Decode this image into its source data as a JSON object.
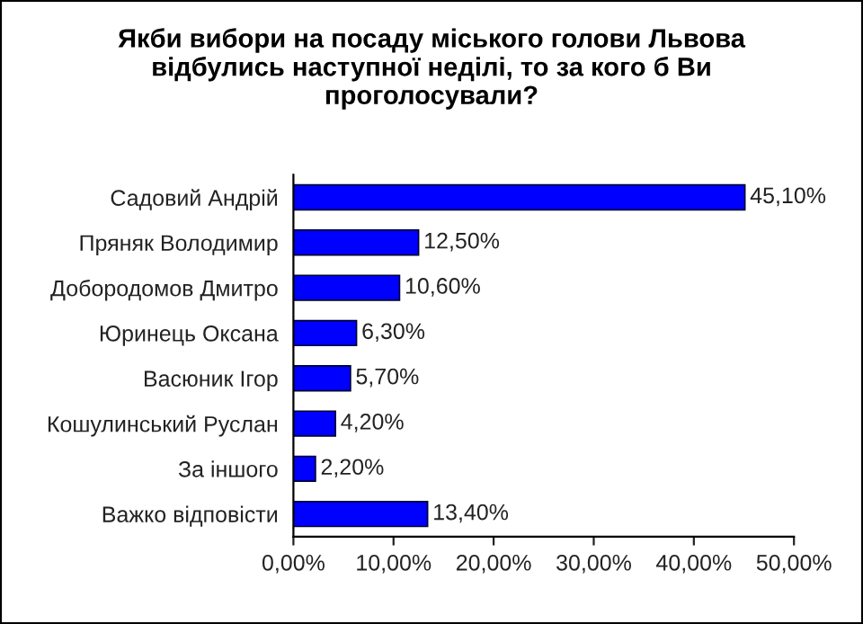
{
  "chart_data": {
    "type": "bar",
    "orientation": "horizontal",
    "title": "Якби вибори на посаду міського голови Львова\nвідбулись наступної неділі, то за кого б Ви\nпроголосували?",
    "categories": [
      "Садовий Андрій",
      "Пряняк Володимир",
      "Добородомов Дмитро",
      "Юринець Оксана",
      "Васюник Ігор",
      "Кошулинський Руслан",
      "За іншого",
      "Важко відповісти"
    ],
    "values": [
      45.1,
      12.5,
      10.6,
      6.3,
      5.7,
      4.2,
      2.2,
      13.4
    ],
    "value_labels": [
      "45,10%",
      "12,50%",
      "10,60%",
      "6,30%",
      "5,70%",
      "4,20%",
      "2,20%",
      "13,40%"
    ],
    "color": "#0000ff",
    "xlim": [
      0,
      50
    ],
    "xticks": [
      {
        "value": 0,
        "label": "0,00%"
      },
      {
        "value": 10,
        "label": "10,00%"
      },
      {
        "value": 20,
        "label": "20,00%"
      },
      {
        "value": 30,
        "label": "30,00%"
      },
      {
        "value": 40,
        "label": "40,00%"
      },
      {
        "value": 50,
        "label": "50,00%"
      }
    ],
    "grid": false,
    "legend": false
  }
}
